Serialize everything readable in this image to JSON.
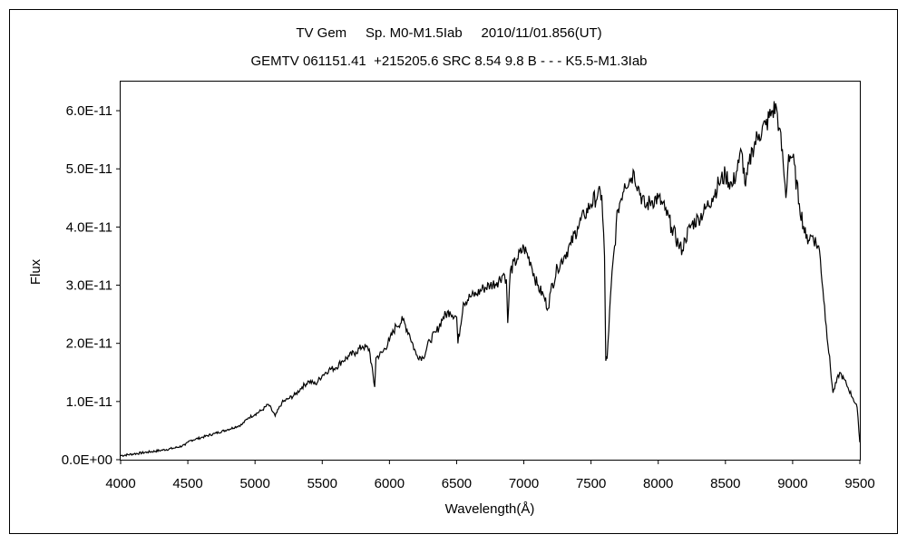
{
  "chart_data": {
    "type": "line",
    "title": "TV Gem     Sp. M0-M1.5Iab     2010/11/01.856(UT)",
    "subtitle": "GEMTV 061151.41  +215205.6 SRC 8.54 9.8 B - - - K5.5-M1.3Iab",
    "xlabel": "Wavelength(Å)",
    "ylabel": "Flux",
    "xlim": [
      4000,
      9500
    ],
    "ylim": [
      0,
      6.5e-11
    ],
    "x_ticks": [
      4000,
      4500,
      5000,
      5500,
      6000,
      6500,
      7000,
      7500,
      8000,
      8500,
      9000,
      9500
    ],
    "x_tick_labels": [
      "4000",
      "4500",
      "5000",
      "5500",
      "6000",
      "6500",
      "7000",
      "7500",
      "8000",
      "8500",
      "9000",
      "9500"
    ],
    "y_ticks": [
      0,
      1e-11,
      2e-11,
      3e-11,
      4e-11,
      5e-11,
      6e-11
    ],
    "y_tick_labels": [
      "0.0E+00",
      "1.0E-11",
      "2.0E-11",
      "3.0E-11",
      "4.0E-11",
      "5.0E-11",
      "6.0E-11"
    ],
    "grid": false,
    "legend": "none",
    "line_color": "#000000",
    "series": [
      {
        "x": [
          4000,
          4100,
          4200,
          4300,
          4400,
          4480,
          4500,
          4520,
          4600,
          4700,
          4800,
          4900,
          4950,
          5000,
          5050,
          5100,
          5150,
          5200,
          5250,
          5300,
          5350,
          5400,
          5450,
          5500,
          5550,
          5600,
          5650,
          5700,
          5750,
          5800,
          5850,
          5890,
          5900,
          5950,
          6000,
          6050,
          6100,
          6150,
          6200,
          6250,
          6300,
          6350,
          6400,
          6450,
          6500,
          6510,
          6550,
          6600,
          6650,
          6700,
          6750,
          6800,
          6850,
          6870,
          6880,
          6900,
          6950,
          7000,
          7050,
          7100,
          7150,
          7180,
          7200,
          7250,
          7300,
          7350,
          7400,
          7450,
          7500,
          7550,
          7580,
          7600,
          7610,
          7620,
          7650,
          7700,
          7750,
          7800,
          7820,
          7850,
          7900,
          7950,
          8000,
          8050,
          8100,
          8150,
          8180,
          8200,
          8250,
          8300,
          8350,
          8400,
          8450,
          8500,
          8550,
          8600,
          8620,
          8650,
          8700,
          8750,
          8800,
          8850,
          8880,
          8900,
          8930,
          8950,
          8970,
          9000,
          9050,
          9100,
          9150,
          9200,
          9250,
          9300,
          9350,
          9400,
          9450,
          9480,
          9500
        ],
        "y": [
          7e-13,
          1e-12,
          1.3e-12,
          1.6e-12,
          2e-12,
          2.5e-12,
          3e-12,
          3.3e-12,
          3.8e-12,
          4.5e-12,
          5.2e-12,
          6e-12,
          7.2e-12,
          7.8e-12,
          8.5e-12,
          9.5e-12,
          7.5e-12,
          9.8e-12,
          1.05e-11,
          1.12e-11,
          1.25e-11,
          1.35e-11,
          1.3e-11,
          1.45e-11,
          1.55e-11,
          1.58e-11,
          1.7e-11,
          1.78e-11,
          1.85e-11,
          1.95e-11,
          1.9e-11,
          1.25e-11,
          1.75e-11,
          1.85e-11,
          2.05e-11,
          2.3e-11,
          2.4e-11,
          2.15e-11,
          1.8e-11,
          1.75e-11,
          2.05e-11,
          2.2e-11,
          2.45e-11,
          2.55e-11,
          2.45e-11,
          2e-11,
          2.7e-11,
          2.8e-11,
          2.85e-11,
          2.95e-11,
          3e-11,
          3.05e-11,
          3.2e-11,
          3.1e-11,
          2.35e-11,
          3.25e-11,
          3.45e-11,
          3.65e-11,
          3.4e-11,
          3e-11,
          2.8e-11,
          2.6e-11,
          2.9e-11,
          3.3e-11,
          3.5e-11,
          3.7e-11,
          4e-11,
          4.2e-11,
          4.4e-11,
          4.55e-11,
          4.55e-11,
          3.5e-11,
          1.7e-11,
          1.75e-11,
          3e-11,
          4.3e-11,
          4.75e-11,
          4.85e-11,
          4.95e-11,
          4.7e-11,
          4.35e-11,
          4.45e-11,
          4.5e-11,
          4.3e-11,
          4e-11,
          3.7e-11,
          3.6e-11,
          3.8e-11,
          4.05e-11,
          4.15e-11,
          4.3e-11,
          4.5e-11,
          4.75e-11,
          4.9e-11,
          4.7e-11,
          5.1e-11,
          5.3e-11,
          4.7e-11,
          5.35e-11,
          5.6e-11,
          5.75e-11,
          6e-11,
          6.05e-11,
          5.7e-11,
          5.1e-11,
          4.5e-11,
          5.25e-11,
          5.2e-11,
          4.4e-11,
          3.8e-11,
          3.85e-11,
          3.6e-11,
          2.3e-11,
          1.15e-11,
          1.5e-11,
          1.3e-11,
          1.05e-11,
          9e-12,
          3e-12
        ]
      }
    ]
  }
}
